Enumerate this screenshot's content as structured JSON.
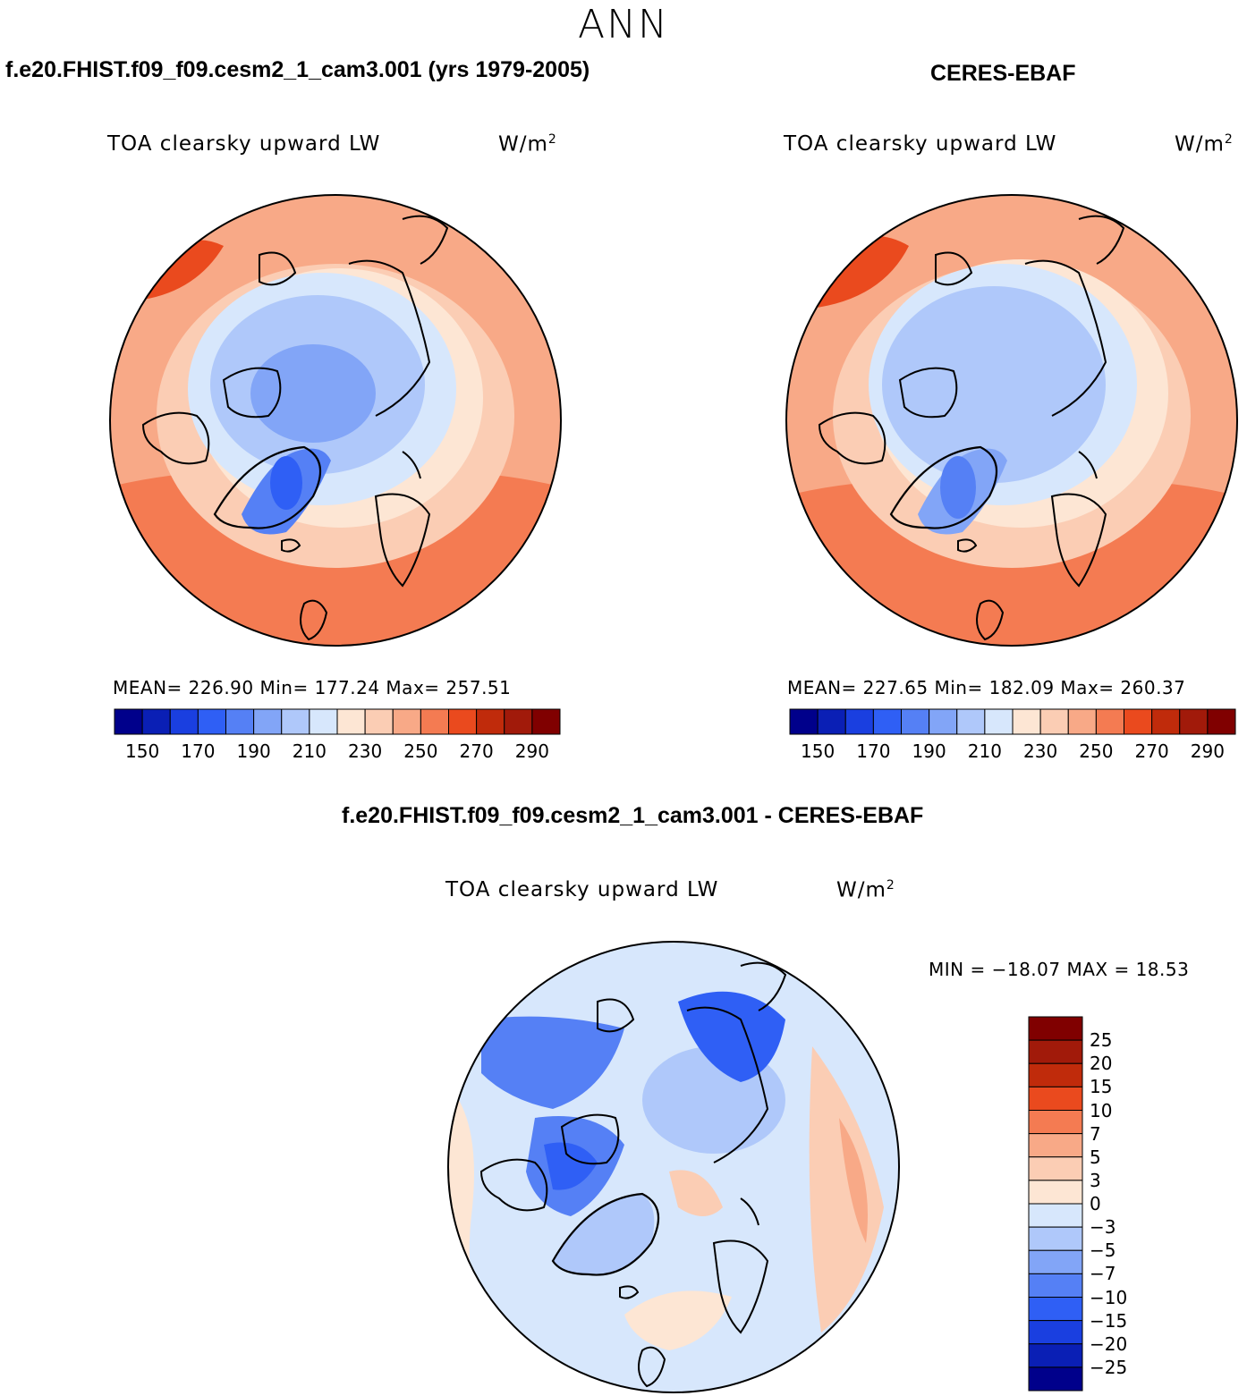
{
  "figure": {
    "season": "ANN"
  },
  "panels": {
    "model": {
      "case_title": "f.e20.FHIST.f09_f09.cesm2_1_cam3.001 (yrs 1979-2005)",
      "variable": "TOA clearsky upward LW",
      "units_base": "W/m",
      "units_exp": "2",
      "stats": "MEAN= 226.90   Min= 177.24   Max= 257.51"
    },
    "obs": {
      "case_title": "CERES-EBAF",
      "variable": "TOA clearsky upward LW",
      "units_base": "W/m",
      "units_exp": "2",
      "stats": "MEAN= 227.65   Min= 182.09   Max= 260.37"
    },
    "diff": {
      "case_title": "f.e20.FHIST.f09_f09.cesm2_1_cam3.001 - CERES-EBAF",
      "variable": "TOA clearsky upward LW",
      "units_base": "W/m",
      "units_exp": "2",
      "stats": "MIN = −18.07 MAX =   18.53"
    }
  },
  "colorbars": {
    "abs_ticks": [
      "150",
      "170",
      "190",
      "210",
      "230",
      "250",
      "270",
      "290"
    ],
    "abs_colors": [
      "#00008b",
      "#0a1fb5",
      "#1a3fe0",
      "#2f5ff5",
      "#5580f5",
      "#82a5f7",
      "#afc8fa",
      "#d7e7fc",
      "#fde6d4",
      "#fbcdb4",
      "#f8a987",
      "#f47b52",
      "#ea4a1e",
      "#c02b0b",
      "#a11a0a",
      "#800000"
    ],
    "diff_ticks": [
      "25",
      "20",
      "15",
      "10",
      "7",
      "5",
      "3",
      "0",
      "−3",
      "−5",
      "−7",
      "−10",
      "−15",
      "−20",
      "−25"
    ],
    "diff_colors": [
      "#800000",
      "#a11a0a",
      "#c02b0b",
      "#ea4a1e",
      "#f47b52",
      "#f8a987",
      "#fbcdb4",
      "#fde6d4",
      "#d7e7fc",
      "#afc8fa",
      "#82a5f7",
      "#5580f5",
      "#2f5ff5",
      "#1a3fe0",
      "#0a1fb5",
      "#00008b"
    ]
  },
  "chart_data": [
    {
      "type": "heatmap",
      "title": "f.e20.FHIST.f09_f09.cesm2_1_cam3.001 (yrs 1979-2005)",
      "subtitle": "TOA clearsky upward LW",
      "units": "W/m^2",
      "projection": "polar stereographic, north pole",
      "mean": 226.9,
      "min": 177.24,
      "max": 257.51,
      "contour_levels": [
        150,
        160,
        170,
        180,
        190,
        200,
        210,
        220,
        230,
        240,
        250,
        260,
        270,
        280,
        290
      ]
    },
    {
      "type": "heatmap",
      "title": "CERES-EBAF",
      "subtitle": "TOA clearsky upward LW",
      "units": "W/m^2",
      "projection": "polar stereographic, north pole",
      "mean": 227.65,
      "min": 182.09,
      "max": 260.37,
      "contour_levels": [
        150,
        160,
        170,
        180,
        190,
        200,
        210,
        220,
        230,
        240,
        250,
        260,
        270,
        280,
        290
      ]
    },
    {
      "type": "heatmap",
      "title": "f.e20.FHIST.f09_f09.cesm2_1_cam3.001 - CERES-EBAF",
      "subtitle": "TOA clearsky upward LW",
      "units": "W/m^2",
      "projection": "polar stereographic, north pole",
      "min": -18.07,
      "max": 18.53,
      "contour_levels": [
        -25,
        -20,
        -15,
        -10,
        -7,
        -5,
        -3,
        0,
        3,
        5,
        7,
        10,
        15,
        20,
        25
      ]
    }
  ]
}
